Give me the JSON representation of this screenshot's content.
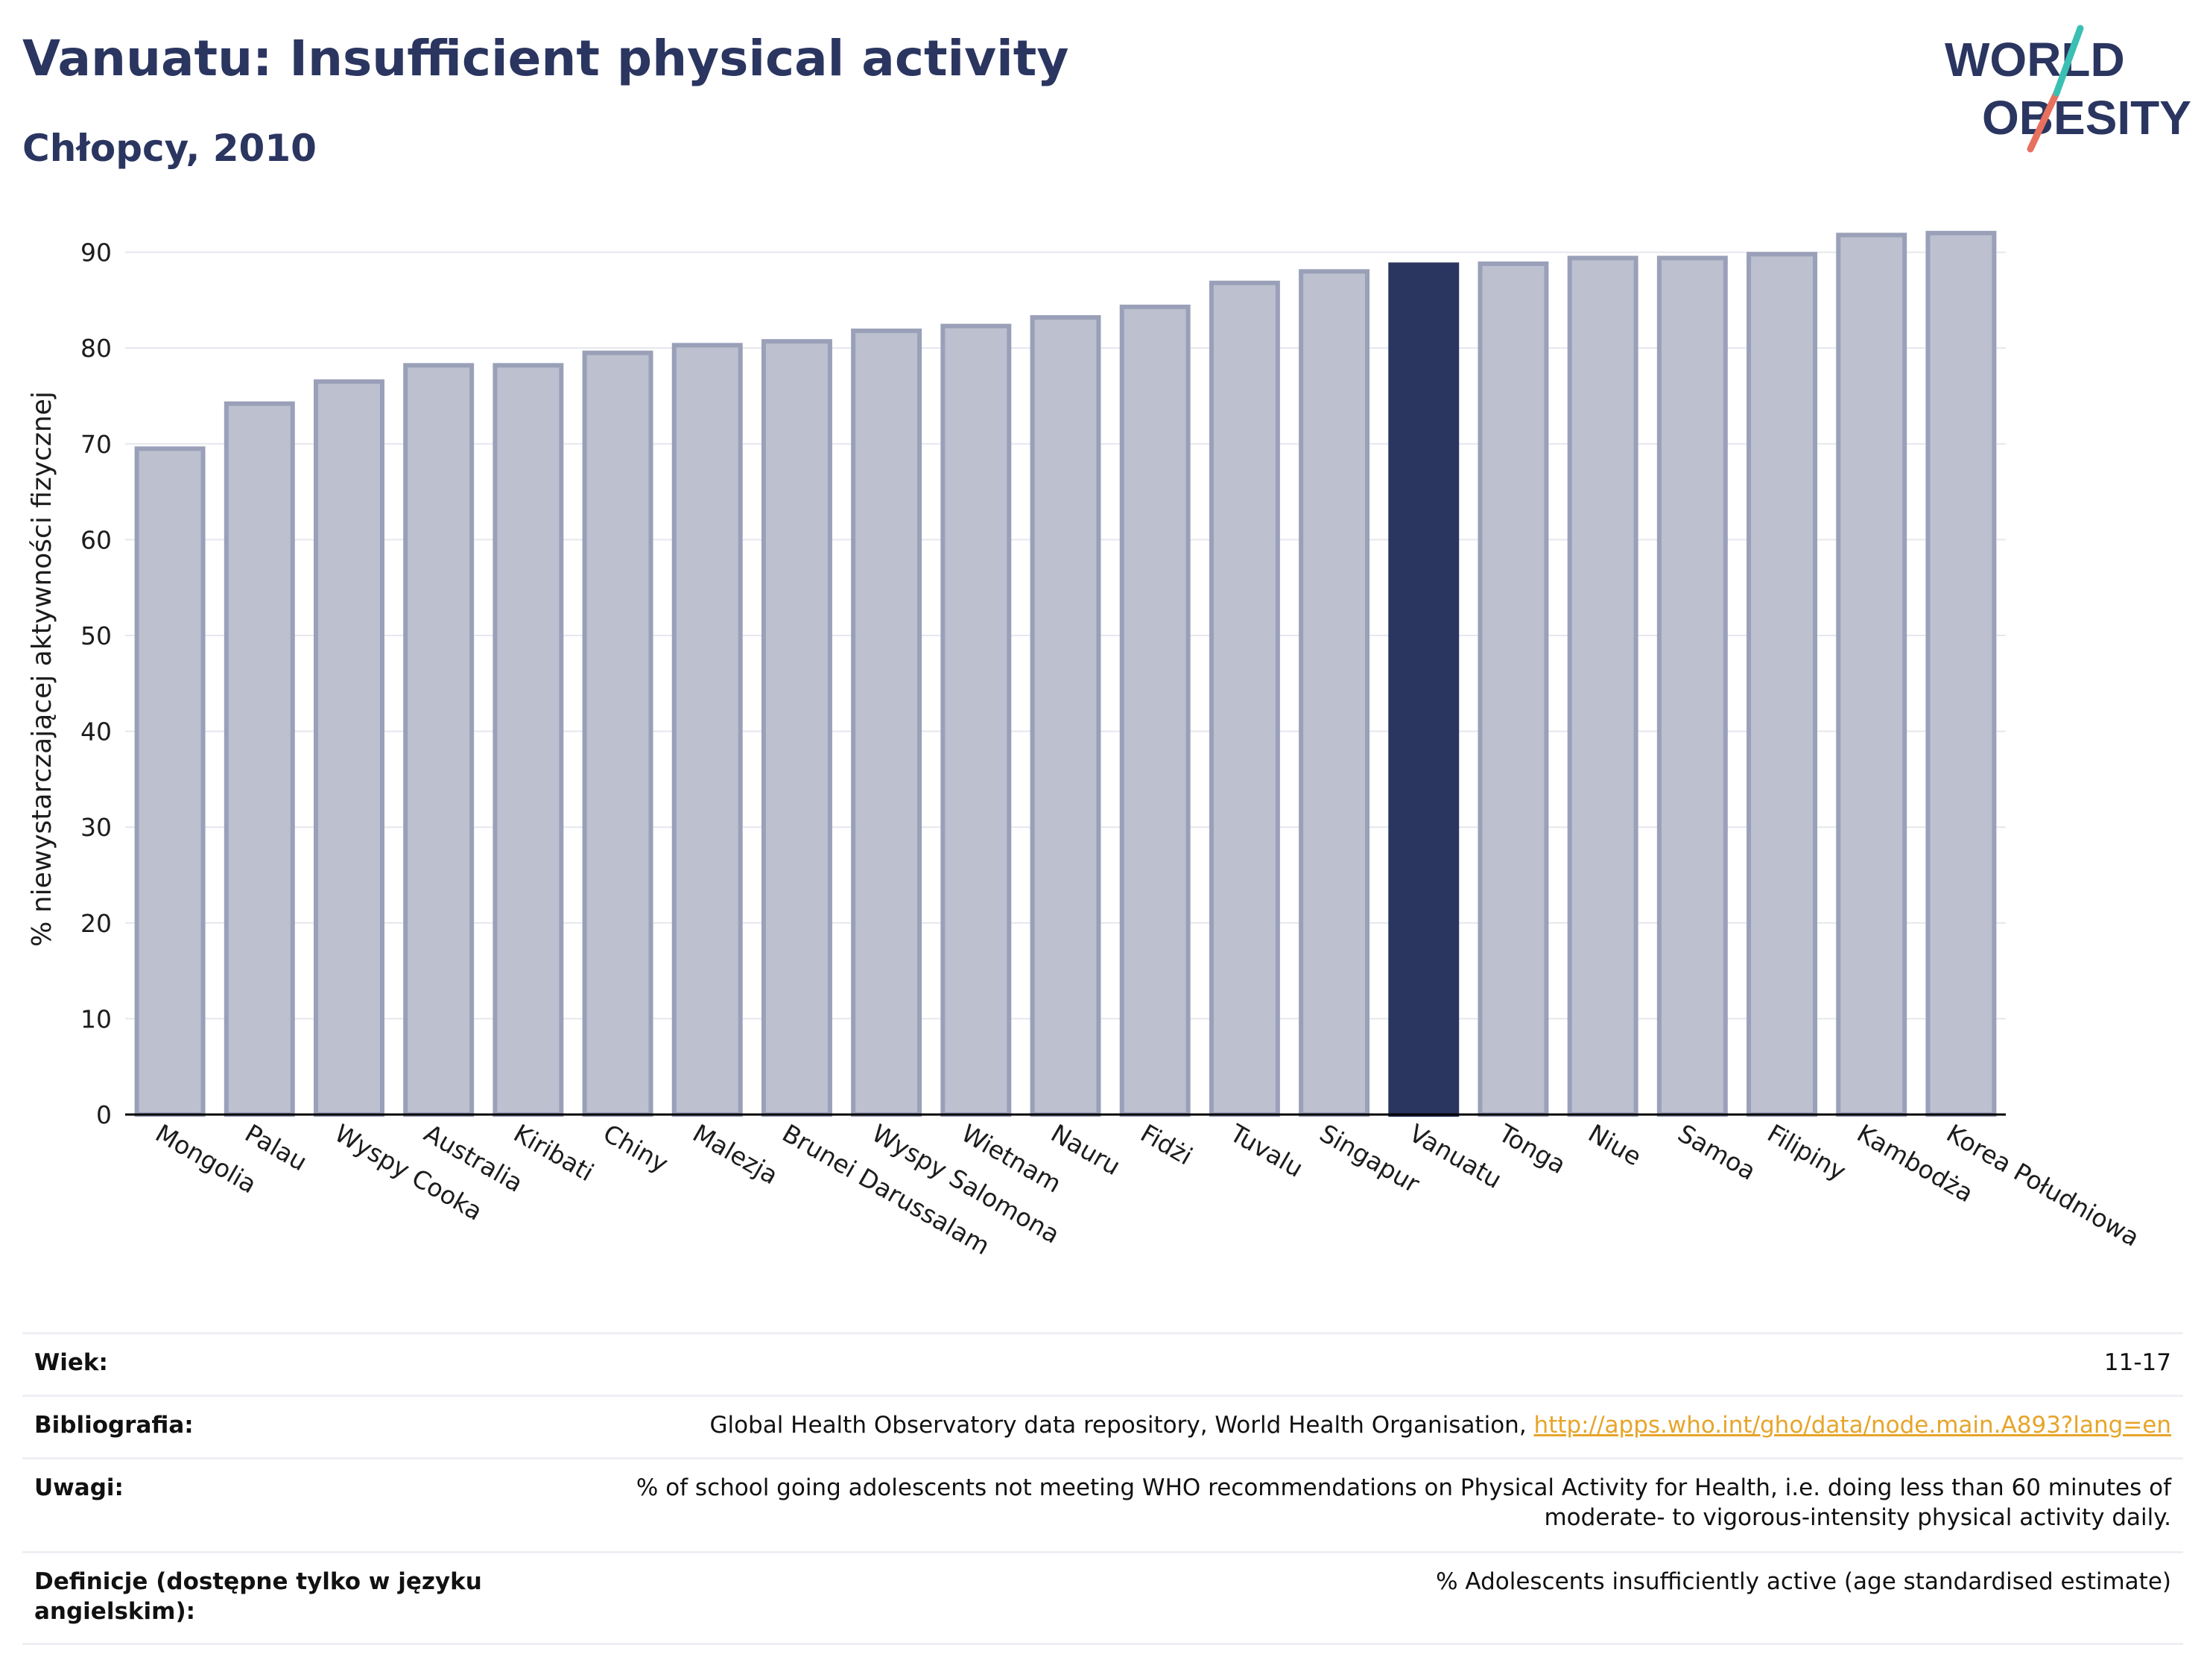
{
  "header": {
    "title": "Vanuatu: Insufficient physical activity",
    "subtitle": "Chłopcy, 2010"
  },
  "logo": {
    "line1": "WORLD",
    "line2": "OBESITY",
    "colors": {
      "text": "#2a3560",
      "stroke_teal": "#3bbfb3",
      "stroke_coral": "#e8705f"
    }
  },
  "colors": {
    "bar_fill": "#bcc0cf",
    "bar_stroke": "#9aa0b8",
    "highlight": "#2a3560",
    "grid": "#e6e7ee",
    "axis": "#000000"
  },
  "chart_data": {
    "type": "bar",
    "title": "Vanuatu: Insufficient physical activity",
    "subtitle": "Chłopcy, 2010",
    "xlabel": "",
    "ylabel": "% niewystarczającej aktywności fizycznej",
    "ylim": [
      0,
      93
    ],
    "yticks": [
      0,
      10,
      20,
      30,
      40,
      50,
      60,
      70,
      80,
      90
    ],
    "grid": true,
    "highlight": "Vanuatu",
    "categories": [
      "Mongolia",
      "Palau",
      "Wyspy Cooka",
      "Australia",
      "Kiribati",
      "Chiny",
      "Malezja",
      "Brunei Darussalam",
      "Wyspy Salomona",
      "Wietnam",
      "Nauru",
      "Fidżi",
      "Tuvalu",
      "Singapur",
      "Vanuatu",
      "Tonga",
      "Niue",
      "Samoa",
      "Filipiny",
      "Kambodża",
      "Korea Południowa"
    ],
    "values": [
      69.5,
      74.2,
      76.5,
      78.2,
      78.2,
      79.5,
      80.3,
      80.7,
      81.8,
      82.3,
      83.2,
      84.3,
      86.8,
      88.0,
      88.7,
      88.8,
      89.4,
      89.4,
      89.8,
      91.8,
      92.0
    ]
  },
  "meta": {
    "rows": [
      {
        "label": "Wiek:",
        "value": "11-17"
      },
      {
        "label": "Bibliografia:",
        "value": "Global Health Observatory data repository, World Health Organisation, ",
        "link": "http://apps.who.int/gho/data/node.main.A893?lang=en"
      },
      {
        "label": "Uwagi:",
        "value": "% of school going adolescents not meeting WHO recommendations on Physical Activity for Health, i.e. doing less than 60 minutes of moderate- to vigorous-intensity physical activity daily."
      },
      {
        "label": "Definicje (dostępne tylko w języku angielskim):",
        "value": "% Adolescents insufficiently active (age standardised estimate)"
      }
    ]
  }
}
